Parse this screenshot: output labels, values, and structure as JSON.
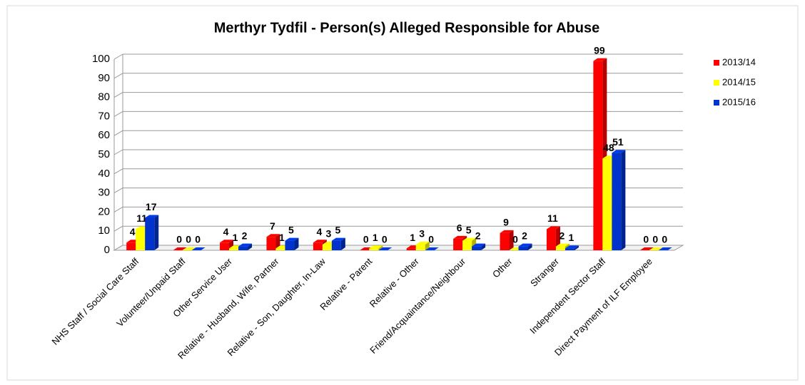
{
  "chart_data": {
    "type": "bar",
    "title": "Merthyr Tydfil - Person(s) Alleged Responsible for Abuse",
    "categories": [
      "NHS Staff / Social Care Staff",
      "Volunteer/Unpaid Staff",
      "Other Service User",
      "Relative - Husband, Wife, Partner",
      "Relative - Son, Daughter, In-Law",
      "Relative - Parent",
      "Relative - Other",
      "Friend/Acquaintance/Neighbour",
      "Other",
      "Stranger",
      "Independent Sector Staff",
      "Direct Payment of ILF Employee"
    ],
    "series": [
      {
        "name": "2013/14",
        "color": "#ff0000",
        "values": [
          4,
          0,
          4,
          7,
          4,
          0,
          1,
          6,
          9,
          11,
          99,
          0
        ]
      },
      {
        "name": "2014/15",
        "color": "#ffff00",
        "values": [
          11,
          0,
          1,
          1,
          3,
          1,
          3,
          5,
          0,
          2,
          48,
          0
        ]
      },
      {
        "name": "2015/16",
        "color": "#0033cc",
        "values": [
          17,
          0,
          2,
          5,
          5,
          0,
          0,
          2,
          2,
          1,
          51,
          0
        ]
      }
    ],
    "ylim": [
      0,
      100
    ],
    "yticks": [
      0,
      10,
      20,
      30,
      40,
      50,
      60,
      70,
      80,
      90,
      100
    ],
    "grid": true,
    "legend": "right"
  }
}
